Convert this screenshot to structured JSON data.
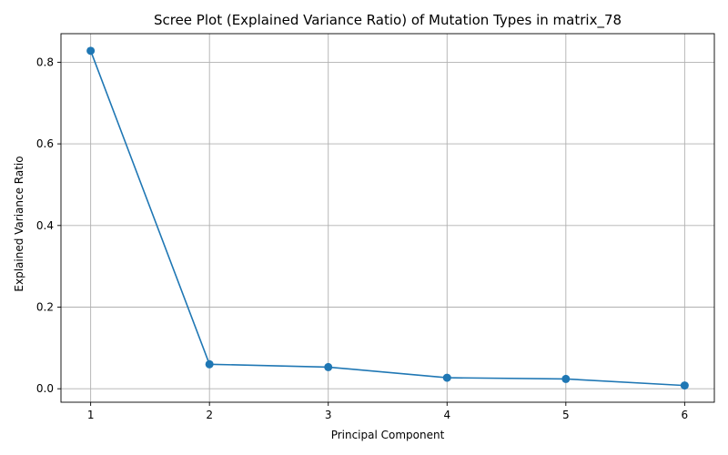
{
  "chart_data": {
    "type": "line",
    "title": "Scree Plot (Explained Variance Ratio) of Mutation Types in matrix_78",
    "xlabel": "Principal Component",
    "ylabel": "Explained Variance Ratio",
    "x": [
      1,
      2,
      3,
      4,
      5,
      6
    ],
    "series": [
      {
        "values": [
          0.828,
          0.06,
          0.053,
          0.027,
          0.024,
          0.008
        ]
      }
    ],
    "xlim": [
      0.75,
      6.25
    ],
    "ylim": [
      -0.033,
      0.87
    ],
    "xticks": [
      1,
      2,
      3,
      4,
      5,
      6
    ],
    "xtick_labels": [
      "1",
      "2",
      "3",
      "4",
      "5",
      "6"
    ],
    "yticks": [
      0.0,
      0.2,
      0.4,
      0.6,
      0.8
    ],
    "ytick_labels": [
      "0.0",
      "0.2",
      "0.4",
      "0.6",
      "0.8"
    ],
    "grid": true,
    "marker": "circle",
    "color": "#1f77b4"
  }
}
